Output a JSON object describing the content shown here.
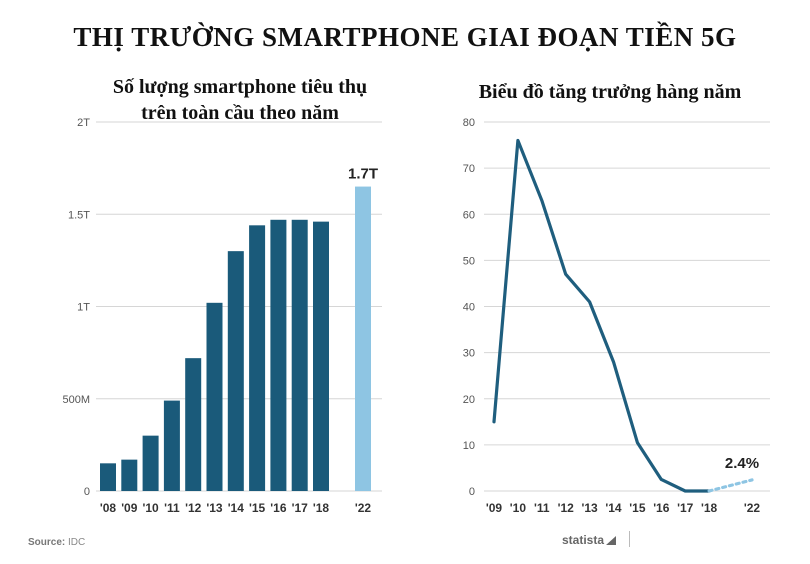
{
  "header": {
    "title": "THỊ TRƯỜNG SMARTPHONE GIAI ĐOẠN TIỀN 5G"
  },
  "footer": {
    "source_label": "Source:",
    "source_value": "IDC",
    "brand": "statista"
  },
  "chart_data": [
    {
      "type": "bar",
      "title": "Số lượng smartphone tiêu thụ trên toàn cầu theo năm",
      "title_lines": [
        "Số lượng smartphone tiêu thụ",
        "trên toàn cầu theo năm"
      ],
      "categories": [
        "'08",
        "'09",
        "'10",
        "'11",
        "'12",
        "'13",
        "'14",
        "'15",
        "'16",
        "'17",
        "'18",
        "'22"
      ],
      "values": [
        0.15,
        0.17,
        0.3,
        0.49,
        0.72,
        1.02,
        1.3,
        1.44,
        1.47,
        1.47,
        1.46,
        1.65
      ],
      "projected": [
        false,
        false,
        false,
        false,
        false,
        false,
        false,
        false,
        false,
        false,
        false,
        true
      ],
      "annotation": "1.7T",
      "ylim": [
        0,
        2
      ],
      "yticks": [
        {
          "value": 0,
          "label": "0"
        },
        {
          "value": 0.5,
          "label": "500M"
        },
        {
          "value": 1,
          "label": "1T"
        },
        {
          "value": 1.5,
          "label": "1.5T"
        },
        {
          "value": 2,
          "label": "2T"
        }
      ],
      "grid": true,
      "colors": {
        "actual": "#1a5a7a",
        "projected": "#8ec5e3"
      }
    },
    {
      "type": "line",
      "title": "Biểu đồ tăng trưởng hàng năm",
      "categories": [
        "'09",
        "'10",
        "'11",
        "'12",
        "'13",
        "'14",
        "'15",
        "'16",
        "'17",
        "'18",
        "'22"
      ],
      "values": [
        15,
        76,
        63,
        47,
        41,
        28,
        10.5,
        2.5,
        0,
        0,
        2.4
      ],
      "projected_segment": {
        "from_index": 9,
        "to_index": 10
      },
      "annotation": "2.4%",
      "ylim": [
        0,
        80
      ],
      "yticks": [
        0,
        10,
        20,
        30,
        40,
        50,
        60,
        70,
        80
      ],
      "grid": true,
      "colors": {
        "line": "#1f5e7e",
        "projected": "#8ec5e3"
      }
    }
  ]
}
